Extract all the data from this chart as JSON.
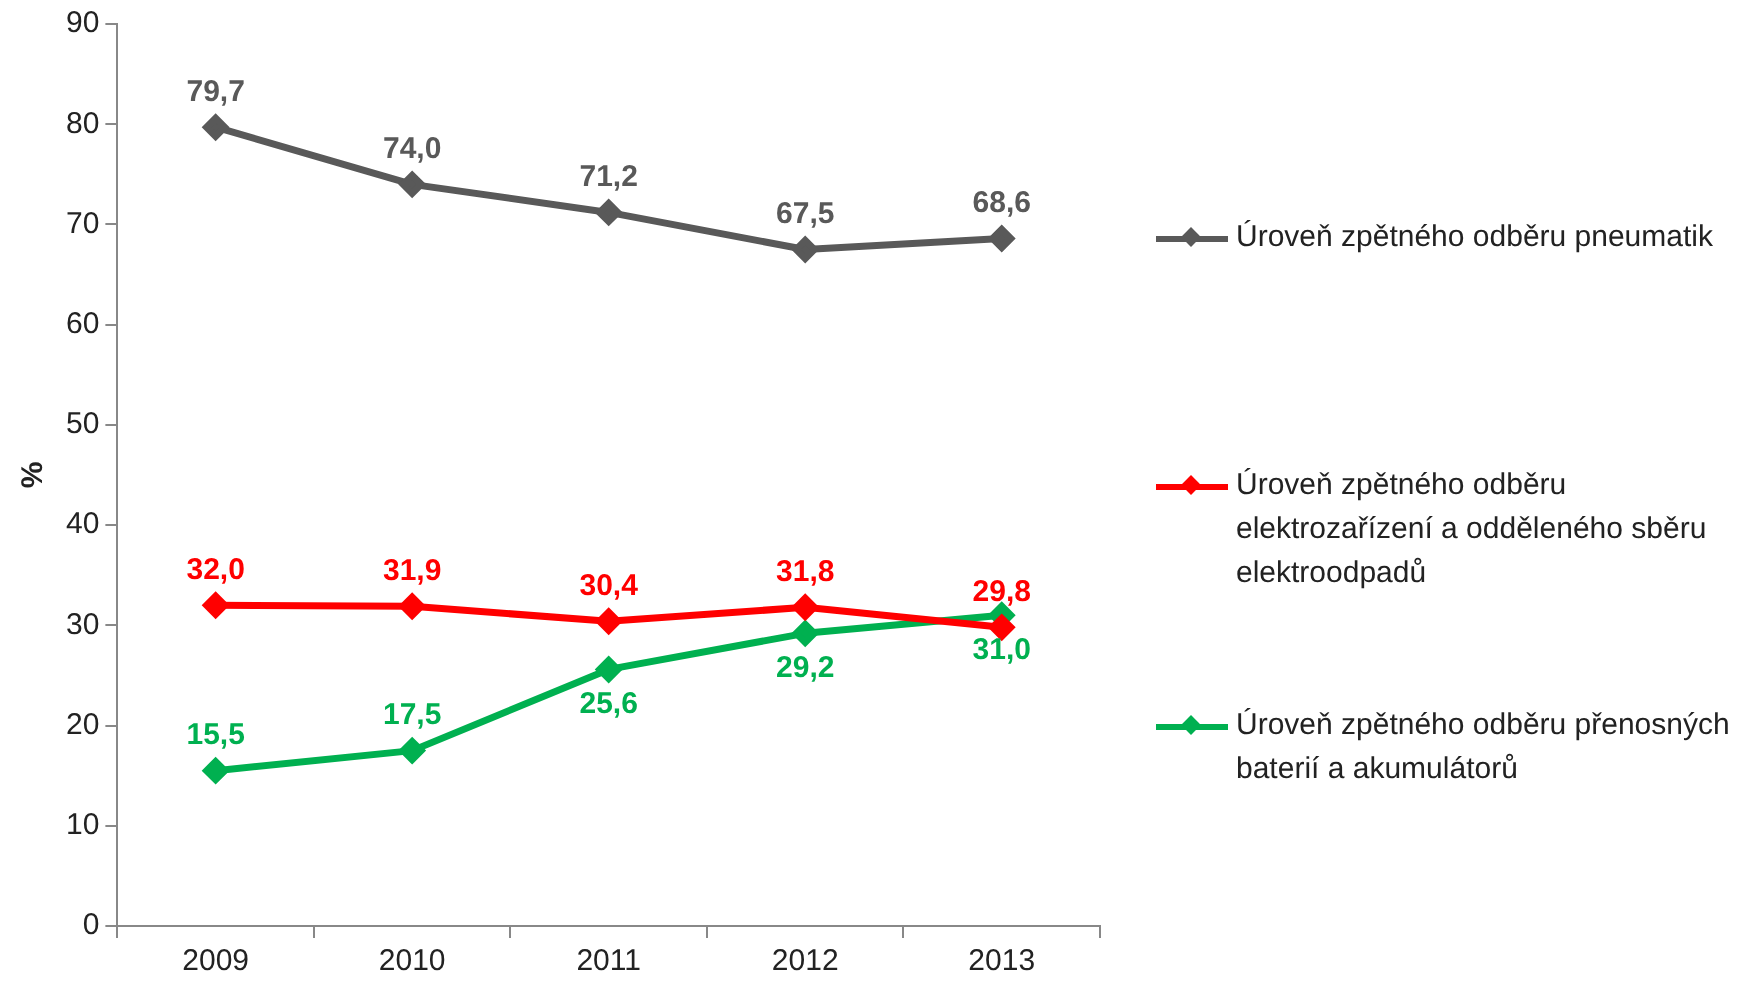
{
  "chart_data": {
    "type": "line",
    "ylabel": "%",
    "categories": [
      "2009",
      "2010",
      "2011",
      "2012",
      "2013"
    ],
    "series": [
      {
        "name": "Úroveň zpětného odběru pneumatik",
        "color": "#595959",
        "values": [
          79.7,
          74.0,
          71.2,
          67.5,
          68.6
        ],
        "value_labels": [
          "79,7",
          "74,0",
          "71,2",
          "67,5",
          "68,6"
        ]
      },
      {
        "name": "Úroveň zpětného odběru elektrozařízení a odděleného sběru elektroodpadů",
        "color": "#ff0000",
        "values": [
          32.0,
          31.9,
          30.4,
          31.8,
          29.8
        ],
        "value_labels": [
          "32,0",
          "31,9",
          "30,4",
          "31,8",
          "29,8"
        ]
      },
      {
        "name": "Úroveň zpětného odběru přenosných baterií a akumulátorů",
        "color": "#00b050",
        "values": [
          15.5,
          17.5,
          25.6,
          29.2,
          31.0
        ],
        "value_labels": [
          "15,5",
          "17,5",
          "25,6",
          "29,2",
          "31,0"
        ]
      }
    ],
    "ylim": [
      0,
      90
    ],
    "yticks": [
      0,
      10,
      20,
      30,
      40,
      50,
      60,
      70,
      80,
      90
    ],
    "legend": "right",
    "marker": "diamond",
    "line_style": "solid"
  }
}
